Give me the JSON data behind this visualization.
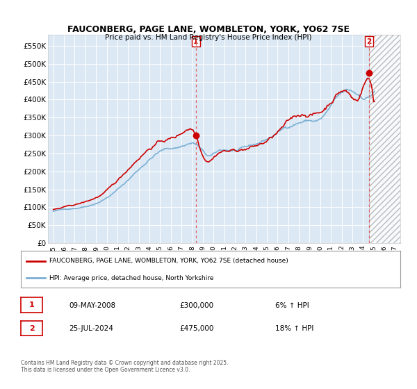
{
  "title": "FAUCONBERG, PAGE LANE, WOMBLETON, YORK, YO62 7SE",
  "subtitle": "Price paid vs. HM Land Registry's House Price Index (HPI)",
  "ylim": [
    0,
    580000
  ],
  "yticks": [
    0,
    50000,
    100000,
    150000,
    200000,
    250000,
    300000,
    350000,
    400000,
    450000,
    500000,
    550000
  ],
  "ytick_labels": [
    "£0",
    "£50K",
    "£100K",
    "£150K",
    "£200K",
    "£250K",
    "£300K",
    "£350K",
    "£400K",
    "£450K",
    "£500K",
    "£550K"
  ],
  "background_color": "#ffffff",
  "plot_bg_color": "#dce9f5",
  "grid_color": "#ffffff",
  "hpi_line_color": "#7bafd4",
  "price_line_color": "#cc0000",
  "marker1_date": "09-MAY-2008",
  "marker1_price": "£300,000",
  "marker1_hpi": "6% ↑ HPI",
  "marker1_x": 2008.35,
  "marker1_y": 300000,
  "marker2_date": "25-JUL-2024",
  "marker2_price": "£475,000",
  "marker2_hpi": "18% ↑ HPI",
  "marker2_x": 2024.56,
  "marker2_y": 475000,
  "legend_label1": "FAUCONBERG, PAGE LANE, WOMBLETON, YORK, YO62 7SE (detached house)",
  "legend_label2": "HPI: Average price, detached house, North Yorkshire",
  "footer": "Contains HM Land Registry data © Crown copyright and database right 2025.\nThis data is licensed under the Open Government Licence v3.0.",
  "xlim": [
    1994.5,
    2027.5
  ],
  "xtick_years": [
    1995,
    1996,
    1997,
    1998,
    1999,
    2000,
    2001,
    2002,
    2003,
    2004,
    2005,
    2006,
    2007,
    2008,
    2009,
    2010,
    2011,
    2012,
    2013,
    2014,
    2015,
    2016,
    2017,
    2018,
    2019,
    2020,
    2021,
    2022,
    2023,
    2024,
    2025,
    2026,
    2027
  ],
  "hatch_start_x": 2024.56
}
